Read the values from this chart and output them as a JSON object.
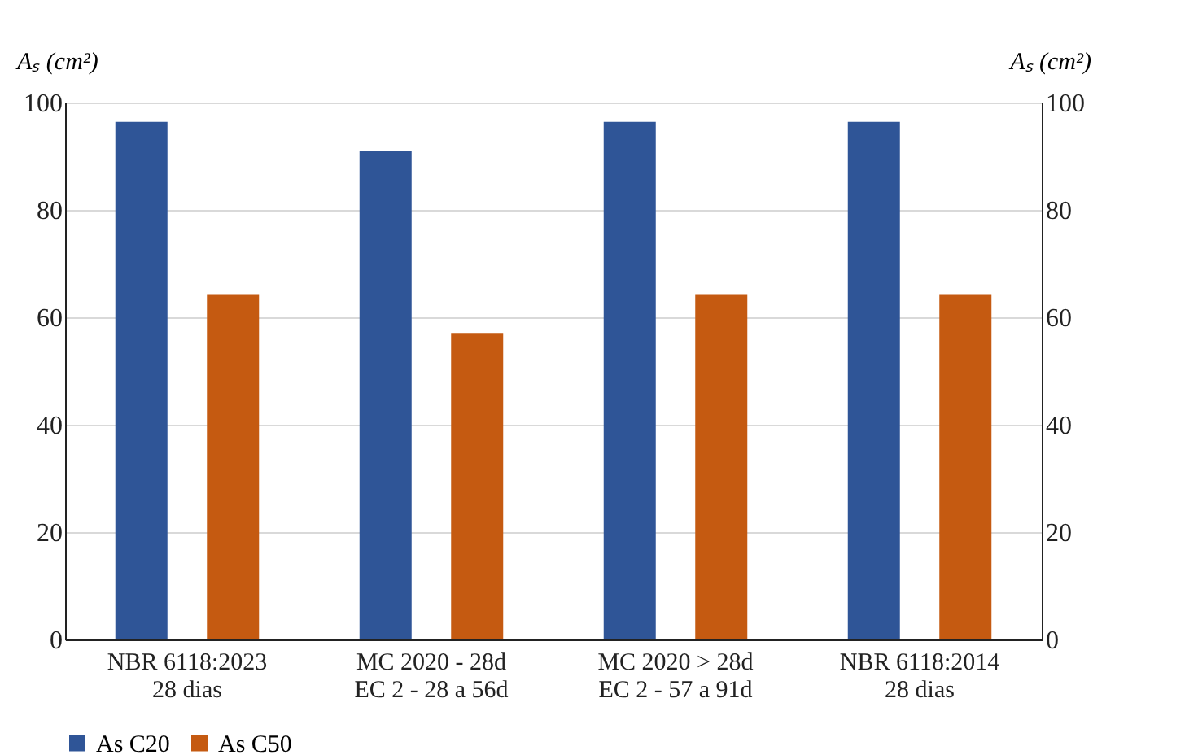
{
  "chart_data": {
    "type": "bar",
    "categories": [
      "NBR 6118:2023\n28 dias",
      "MC 2020 - 28d\nEC 2 - 28 a 56d",
      "MC 2020 > 28d\nEC 2 - 57 a 91d",
      "NBR 6118:2014\n28 dias"
    ],
    "series": [
      {
        "name": "As C20",
        "color": "#2f5597",
        "values": [
          96.4,
          90.9,
          96.4,
          96.4
        ]
      },
      {
        "name": "As C50",
        "color": "#c55a11",
        "values": [
          64.3,
          57.1,
          64.3,
          64.3
        ]
      }
    ],
    "ylabel": "Aₛ (cm²)",
    "y2label": "Aₛ (cm²)",
    "ylim": [
      0,
      100
    ],
    "yticks": [
      0,
      20,
      40,
      60,
      80,
      100
    ],
    "y2lim": [
      0,
      100
    ],
    "y2ticks": [
      0,
      20,
      40,
      60,
      80,
      100
    ],
    "grid": "y",
    "legend": "bottom"
  }
}
